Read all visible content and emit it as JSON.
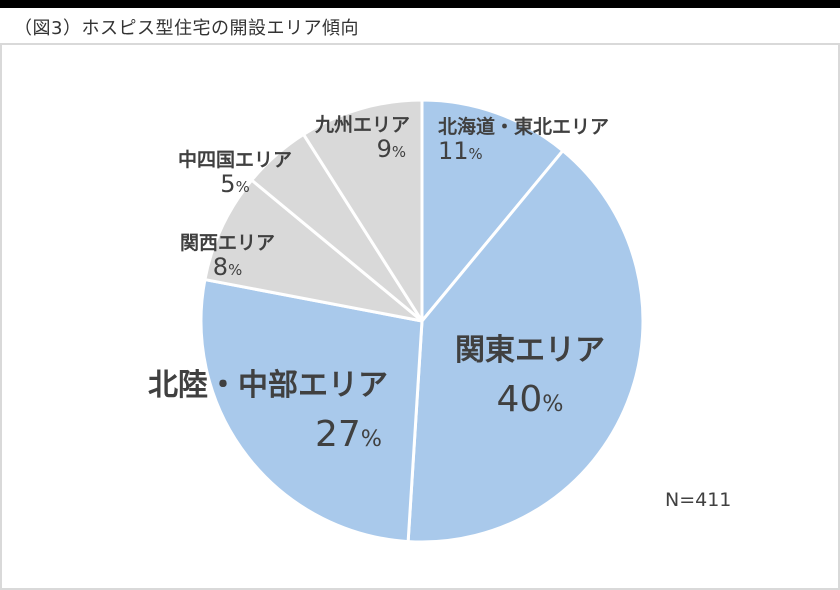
{
  "title": "（図3）ホスピス型住宅の開設エリア傾向",
  "n_label": "N=411",
  "colors": {
    "blue": "#a9c9eb",
    "gray": "#d9d9d9",
    "separator": "#ffffff",
    "text": "#404040"
  },
  "labels": {
    "hokkaido": {
      "name": "北海道・東北エリア",
      "pct": "11",
      "unit": "%"
    },
    "kanto": {
      "name": "関東エリア",
      "pct": "40",
      "unit": "%"
    },
    "hokuriku": {
      "name": "北陸・中部エリア",
      "pct": "27",
      "unit": "%"
    },
    "kansai": {
      "name": "関西エリア",
      "pct": "8",
      "unit": "%"
    },
    "chushikoku": {
      "name": "中四国エリア",
      "pct": "5",
      "unit": "%"
    },
    "kyushu": {
      "name": "九州エリア",
      "pct": "9",
      "unit": "%"
    }
  },
  "chart_data": {
    "type": "pie",
    "title": "（図3）ホスピス型住宅の開設エリア傾向",
    "start_angle": "12 o'clock, clockwise",
    "categories": [
      "北海道・東北エリア",
      "関東エリア",
      "北陸・中部エリア",
      "関西エリア",
      "中四国エリア",
      "九州エリア"
    ],
    "values": [
      11,
      40,
      27,
      8,
      5,
      9
    ],
    "unit": "%",
    "colors": [
      "#a9c9eb",
      "#a9c9eb",
      "#a9c9eb",
      "#d9d9d9",
      "#d9d9d9",
      "#d9d9d9"
    ],
    "annotations": [
      "N=411"
    ],
    "legend": "none (data labels on slices)"
  }
}
